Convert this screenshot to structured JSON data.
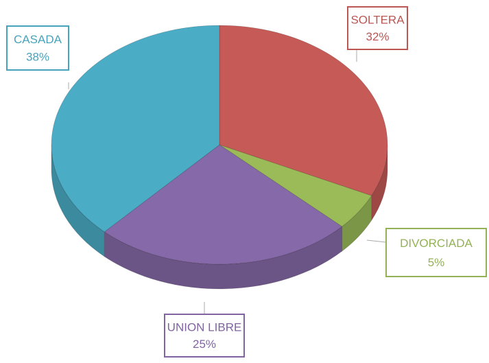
{
  "chart_data": {
    "type": "pie",
    "categories": [
      "SOLTERA",
      "DIVORCIADA",
      "UNION LIBRE",
      "CASADA"
    ],
    "values": [
      32,
      5,
      25,
      38
    ],
    "value_labels": [
      "32%",
      "5%",
      "25%",
      "38%"
    ],
    "colors": [
      "#c55a57",
      "#9bbb59",
      "#8669a8",
      "#4bacc6"
    ]
  }
}
